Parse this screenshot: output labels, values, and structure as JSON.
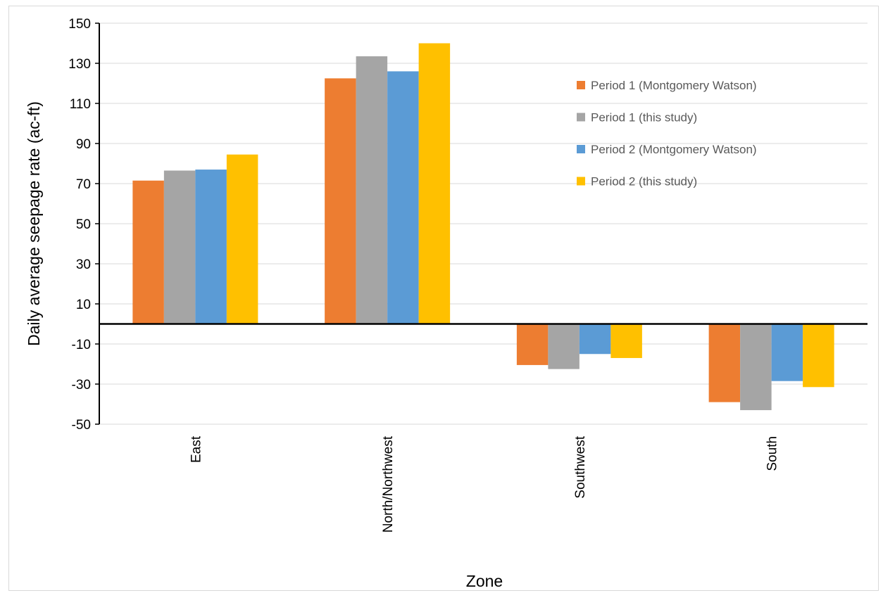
{
  "chart_data": {
    "type": "bar",
    "categories": [
      "East",
      "North/Northwest",
      "Southwest",
      "South"
    ],
    "series": [
      {
        "name": "Period 1 (Montgomery Watson)",
        "color": "#ED7D31",
        "values": [
          71.5,
          122.5,
          -20.5,
          -39.0
        ]
      },
      {
        "name": "Period 1 (this study)",
        "color": "#A5A5A5",
        "values": [
          76.5,
          133.5,
          -22.5,
          -43.0
        ]
      },
      {
        "name": "Period 2 (Montgomery Watson)",
        "color": "#5B9BD5",
        "values": [
          77.0,
          126.0,
          -15.0,
          -28.5
        ]
      },
      {
        "name": "Period 2 (this study)",
        "color": "#FFC000",
        "values": [
          84.5,
          140.0,
          -17.0,
          -31.5
        ]
      }
    ],
    "title": "",
    "xlabel": "Zone",
    "ylabel": "Daily average seepage rate (ac-ft)",
    "ylim": [
      -50,
      150
    ],
    "yticks": [
      150,
      130,
      110,
      90,
      70,
      50,
      30,
      10,
      -10,
      -30,
      -50
    ],
    "grid": true,
    "legend_position": "top-right"
  }
}
